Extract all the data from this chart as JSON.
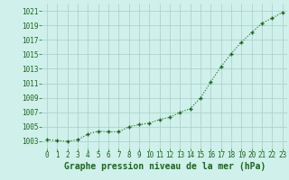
{
  "x": [
    0,
    1,
    2,
    3,
    4,
    5,
    6,
    7,
    8,
    9,
    10,
    11,
    12,
    13,
    14,
    15,
    16,
    17,
    18,
    19,
    20,
    21,
    22,
    23
  ],
  "y": [
    1003.2,
    1003.1,
    1003.0,
    1003.2,
    1004.0,
    1004.4,
    1004.3,
    1004.3,
    1005.0,
    1005.3,
    1005.5,
    1006.0,
    1006.3,
    1007.0,
    1007.5,
    1009.0,
    1011.2,
    1013.3,
    1015.1,
    1016.7,
    1018.0,
    1019.3,
    1020.0,
    1020.8
  ],
  "xlim": [
    -0.5,
    23.5
  ],
  "ylim": [
    1002.0,
    1022.0
  ],
  "yticks": [
    1003,
    1005,
    1007,
    1009,
    1011,
    1013,
    1015,
    1017,
    1019,
    1021
  ],
  "xticks": [
    0,
    1,
    2,
    3,
    4,
    5,
    6,
    7,
    8,
    9,
    10,
    11,
    12,
    13,
    14,
    15,
    16,
    17,
    18,
    19,
    20,
    21,
    22,
    23
  ],
  "line_color": "#1a6618",
  "marker_color": "#1a6618",
  "bg_color": "#cff0eb",
  "grid_color": "#a8cdc8",
  "xlabel": "Graphe pression niveau de la mer (hPa)",
  "xlabel_color": "#1a6618",
  "tick_color": "#1a6618",
  "tick_fontsize": 5.5,
  "xlabel_fontsize": 7.0
}
